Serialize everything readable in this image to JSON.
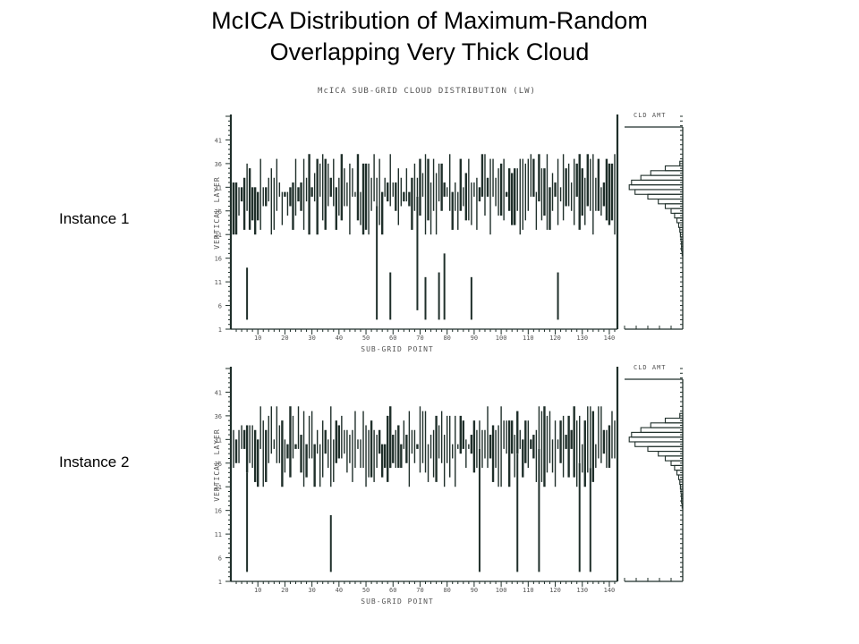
{
  "slide": {
    "title_line1": "McICA Distribution of Maximum-Random",
    "title_line2": "Overlapping Very Thick Cloud"
  },
  "figure": {
    "heading": "McICA SUB-GRID CLOUD DISTRIBUTION (LW)",
    "line_color": "#1f2f2a"
  },
  "chart_data": [
    {
      "type": "bar",
      "label": "Instance 1",
      "title": "McICA SUB-GRID CLOUD DISTRIBUTION (LW)",
      "xlabel": "SUB-GRID POINT",
      "ylabel": "VERTICAL LAYER",
      "xlim": [
        1,
        142
      ],
      "ylim": [
        1,
        46
      ],
      "x_ticks": [
        "10",
        "20",
        "30",
        "40",
        "50",
        "60",
        "70",
        "80",
        "90",
        "100",
        "110",
        "120",
        "130",
        "140"
      ],
      "y_ticks": [
        "1",
        "6",
        "11",
        "16",
        "21",
        "26",
        "31",
        "36",
        "41"
      ],
      "cloud_bottoms_with_gaps": [
        {
          "x": 6,
          "bottom": 3
        },
        {
          "x": 54,
          "bottom": 3
        },
        {
          "x": 59,
          "bottom": 3
        },
        {
          "x": 69,
          "bottom": 5
        },
        {
          "x": 72,
          "bottom": 3
        },
        {
          "x": 77,
          "bottom": 3
        },
        {
          "x": 79,
          "bottom": 3
        },
        {
          "x": 89,
          "bottom": 3
        },
        {
          "x": 121,
          "bottom": 3
        }
      ],
      "side_panel": {
        "title": "CLD AMT",
        "profile_layers": [
          36,
          35,
          34,
          33,
          32,
          31,
          30,
          29,
          28,
          27,
          26,
          25,
          24,
          23,
          22,
          21,
          20,
          19,
          18,
          17
        ],
        "profile_amount": [
          0.05,
          0.3,
          0.55,
          0.72,
          0.88,
          0.92,
          0.82,
          0.6,
          0.42,
          0.3,
          0.2,
          0.14,
          0.1,
          0.07,
          0.05,
          0.04,
          0.03,
          0.02,
          0.02,
          0.01
        ]
      }
    },
    {
      "type": "bar",
      "label": "Instance 2",
      "title": "",
      "xlabel": "SUB-GRID POINT",
      "ylabel": "VERTICAL LAYER",
      "xlim": [
        1,
        142
      ],
      "ylim": [
        1,
        46
      ],
      "x_ticks": [
        "10",
        "20",
        "30",
        "40",
        "50",
        "60",
        "70",
        "80",
        "90",
        "100",
        "110",
        "120",
        "130",
        "140"
      ],
      "y_ticks": [
        "1",
        "6",
        "11",
        "16",
        "21",
        "26",
        "31",
        "36",
        "41"
      ],
      "cloud_bottoms_with_gaps": [
        {
          "x": 6,
          "bottom": 3
        },
        {
          "x": 37,
          "bottom": 3
        },
        {
          "x": 92,
          "bottom": 3
        },
        {
          "x": 106,
          "bottom": 3
        },
        {
          "x": 114,
          "bottom": 3
        },
        {
          "x": 129,
          "bottom": 3
        },
        {
          "x": 133,
          "bottom": 3
        }
      ],
      "side_panel": {
        "title": "CLD AMT",
        "profile_layers": [
          36,
          35,
          34,
          33,
          32,
          31,
          30,
          29,
          28,
          27,
          26,
          25,
          24,
          23,
          22,
          21,
          20,
          19,
          18,
          17
        ],
        "profile_amount": [
          0.05,
          0.3,
          0.55,
          0.72,
          0.88,
          0.92,
          0.82,
          0.6,
          0.42,
          0.3,
          0.2,
          0.14,
          0.1,
          0.07,
          0.05,
          0.04,
          0.03,
          0.02,
          0.02,
          0.01
        ]
      }
    }
  ]
}
